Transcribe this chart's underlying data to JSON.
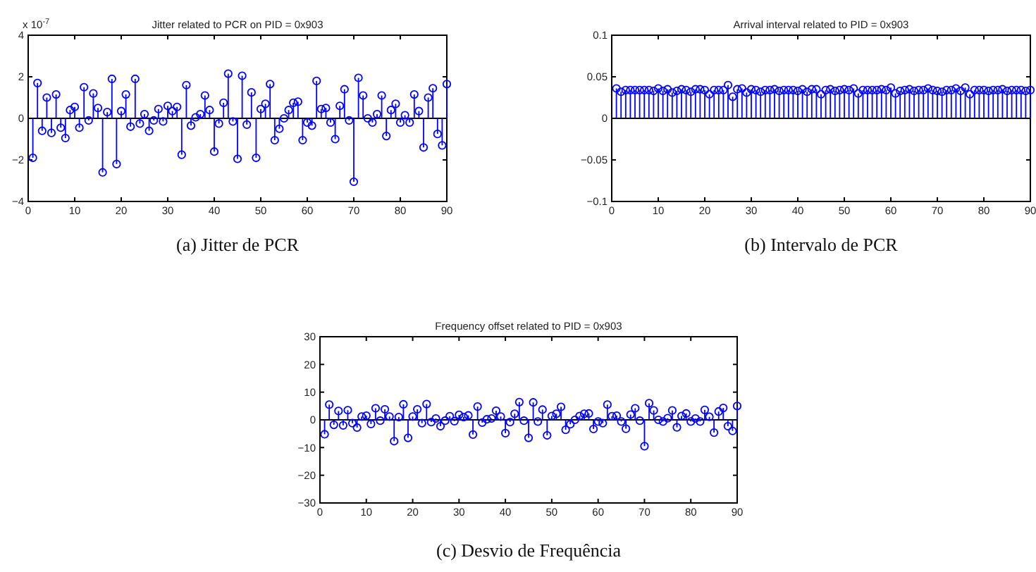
{
  "chart_data": [
    {
      "type": "lollipop",
      "title": "Jitter related to PCR on PID = 0x903",
      "ylabel": "x 10$^{-7}$",
      "annotations": [
        "(a) Jitter de PCR"
      ],
      "marker": "circle",
      "xlim": [
        0,
        90
      ],
      "xticks": [
        0,
        10,
        20,
        30,
        40,
        50,
        60,
        70,
        80,
        90
      ],
      "ylim": [
        -4,
        4
      ],
      "yticks": [
        -4,
        -2,
        0,
        2,
        4
      ],
      "series": [
        {
          "color": "#0000ff",
          "x": [
            1,
            2,
            3,
            4,
            5,
            6,
            7,
            8,
            9,
            10,
            11,
            12,
            13,
            14,
            15,
            16,
            17,
            18,
            19,
            20,
            21,
            22,
            23,
            24,
            25,
            26,
            27,
            28,
            29,
            30,
            31,
            32,
            33,
            34,
            35,
            36,
            37,
            38,
            39,
            40,
            41,
            42,
            43,
            44,
            45,
            46,
            47,
            48,
            49,
            50,
            51,
            52,
            53,
            54,
            55,
            56,
            57,
            58,
            59,
            60,
            61,
            62,
            63,
            64,
            65,
            66,
            67,
            68,
            69,
            70,
            71,
            72,
            73,
            74,
            75,
            76,
            77,
            78,
            79,
            80,
            81,
            82,
            83,
            84,
            85,
            86,
            87,
            88,
            89,
            90
          ],
          "values": [
            -1.9,
            1.7,
            -0.6,
            1.0,
            -0.7,
            1.15,
            -0.45,
            -0.95,
            0.4,
            0.55,
            -0.45,
            1.5,
            -0.1,
            1.2,
            0.5,
            -2.6,
            0.3,
            1.9,
            -2.2,
            0.35,
            1.15,
            -0.4,
            1.9,
            -0.25,
            0.2,
            -0.6,
            -0.1,
            0.45,
            -0.15,
            0.6,
            0.35,
            0.55,
            -1.75,
            1.6,
            -0.35,
            0.05,
            0.2,
            1.1,
            0.4,
            -1.6,
            -0.25,
            0.75,
            2.15,
            -0.15,
            -1.95,
            2.05,
            -0.3,
            1.25,
            -1.9,
            0.45,
            0.7,
            1.65,
            -1.05,
            -0.5,
            0.0,
            0.4,
            0.75,
            0.8,
            -1.05,
            -0.2,
            -0.35,
            1.8,
            0.45,
            0.5,
            -0.2,
            -1.0,
            0.6,
            1.4,
            -0.1,
            -3.05,
            1.95,
            1.1,
            0.0,
            -0.2,
            0.2,
            1.1,
            -0.85,
            0.4,
            0.7,
            -0.2,
            0.15,
            -0.2,
            1.15,
            0.35,
            -1.4,
            1.0,
            1.45,
            -0.75,
            -1.3,
            1.65
          ]
        }
      ]
    },
    {
      "type": "lollipop",
      "title": "Arrival interval related to PID = 0x903",
      "annotations": [
        "(b) Intervalo de PCR"
      ],
      "marker": "circle",
      "xlim": [
        0,
        90
      ],
      "xticks": [
        0,
        10,
        20,
        30,
        40,
        50,
        60,
        70,
        80,
        90
      ],
      "ylim": [
        -0.1,
        0.1
      ],
      "yticks": [
        -0.1,
        -0.05,
        0,
        0.05,
        0.1
      ],
      "series": [
        {
          "color": "#0000ff",
          "x": [
            1,
            2,
            3,
            4,
            5,
            6,
            7,
            8,
            9,
            10,
            11,
            12,
            13,
            14,
            15,
            16,
            17,
            18,
            19,
            20,
            21,
            22,
            23,
            24,
            25,
            26,
            27,
            28,
            29,
            30,
            31,
            32,
            33,
            34,
            35,
            36,
            37,
            38,
            39,
            40,
            41,
            42,
            43,
            44,
            45,
            46,
            47,
            48,
            49,
            50,
            51,
            52,
            53,
            54,
            55,
            56,
            57,
            58,
            59,
            60,
            61,
            62,
            63,
            64,
            65,
            66,
            67,
            68,
            69,
            70,
            71,
            72,
            73,
            74,
            75,
            76,
            77,
            78,
            79,
            80,
            81,
            82,
            83,
            84,
            85,
            86,
            87,
            88,
            89,
            90
          ],
          "values": [
            0.036,
            0.032,
            0.034,
            0.034,
            0.034,
            0.034,
            0.034,
            0.034,
            0.033,
            0.036,
            0.033,
            0.035,
            0.031,
            0.033,
            0.035,
            0.034,
            0.032,
            0.035,
            0.035,
            0.034,
            0.029,
            0.034,
            0.034,
            0.034,
            0.04,
            0.026,
            0.035,
            0.036,
            0.031,
            0.035,
            0.034,
            0.032,
            0.034,
            0.034,
            0.035,
            0.033,
            0.034,
            0.034,
            0.034,
            0.033,
            0.035,
            0.032,
            0.035,
            0.035,
            0.029,
            0.034,
            0.035,
            0.033,
            0.034,
            0.035,
            0.034,
            0.036,
            0.03,
            0.034,
            0.034,
            0.034,
            0.034,
            0.035,
            0.034,
            0.037,
            0.03,
            0.033,
            0.034,
            0.035,
            0.033,
            0.034,
            0.034,
            0.036,
            0.034,
            0.033,
            0.032,
            0.034,
            0.034,
            0.036,
            0.033,
            0.037,
            0.029,
            0.034,
            0.034,
            0.034,
            0.033,
            0.034,
            0.034,
            0.035,
            0.033,
            0.034,
            0.034,
            0.034,
            0.033,
            0.034
          ]
        }
      ]
    },
    {
      "type": "lollipop",
      "title": "Frequency offset related to PID = 0x903",
      "annotations": [
        "(c) Desvio de Frequência"
      ],
      "marker": "circle",
      "xlim": [
        0,
        90
      ],
      "xticks": [
        0,
        10,
        20,
        30,
        40,
        50,
        60,
        70,
        80,
        90
      ],
      "ylim": [
        -30,
        30
      ],
      "yticks": [
        -30,
        -20,
        -10,
        0,
        10,
        20,
        30
      ],
      "series": [
        {
          "color": "#0000ff",
          "x": [
            1,
            2,
            3,
            4,
            5,
            6,
            7,
            8,
            9,
            10,
            11,
            12,
            13,
            14,
            15,
            16,
            17,
            18,
            19,
            20,
            21,
            22,
            23,
            24,
            25,
            26,
            27,
            28,
            29,
            30,
            31,
            32,
            33,
            34,
            35,
            36,
            37,
            38,
            39,
            40,
            41,
            42,
            43,
            44,
            45,
            46,
            47,
            48,
            49,
            50,
            51,
            52,
            53,
            54,
            55,
            56,
            57,
            58,
            59,
            60,
            61,
            62,
            63,
            64,
            65,
            66,
            67,
            68,
            69,
            70,
            71,
            72,
            73,
            74,
            75,
            76,
            77,
            78,
            79,
            80,
            81,
            82,
            83,
            84,
            85,
            86,
            87,
            88,
            89,
            90
          ],
          "values": [
            -5.2,
            5.5,
            -1.8,
            3.2,
            -2.0,
            3.5,
            -1.2,
            -2.8,
            1.2,
            1.5,
            -1.5,
            4.2,
            -0.3,
            3.8,
            1.2,
            -7.7,
            1.0,
            5.6,
            -6.5,
            1.2,
            3.8,
            -1.2,
            5.7,
            -0.8,
            0.5,
            -2.3,
            -0.3,
            1.3,
            -0.5,
            1.8,
            1.0,
            1.6,
            -5.3,
            4.8,
            -1.0,
            0.2,
            0.5,
            3.3,
            1.2,
            -4.8,
            -0.8,
            2.2,
            6.4,
            -0.3,
            -6.5,
            6.3,
            -0.6,
            3.7,
            -5.6,
            1.4,
            2.2,
            4.7,
            -3.6,
            -1.6,
            0.0,
            1.4,
            2.2,
            2.3,
            -3.3,
            -0.6,
            -1.2,
            5.5,
            1.3,
            1.5,
            -0.6,
            -3.2,
            1.9,
            4.2,
            -0.3,
            -9.5,
            6.0,
            3.4,
            0.0,
            -0.6,
            0.6,
            3.4,
            -2.7,
            1.4,
            2.3,
            -0.6,
            0.5,
            -0.6,
            3.6,
            1.1,
            -4.6,
            3.0,
            4.3,
            -2.3,
            -4.0,
            5.0
          ]
        }
      ]
    }
  ]
}
